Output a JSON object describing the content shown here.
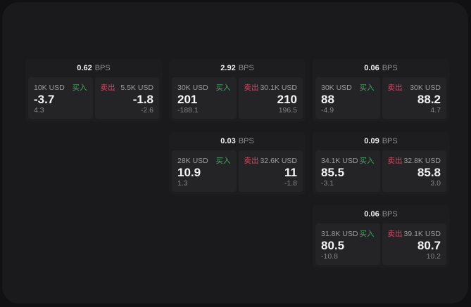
{
  "labels": {
    "bps_unit": "BPS",
    "buy": "买入",
    "sell": "卖出"
  },
  "colors": {
    "buy_green": "#46a363",
    "sell_red": "#c9506a",
    "card_bg": "#1d1d1f",
    "pane_bg": "#242427",
    "panel_bg": "#1a1a1c",
    "page_bg": "#111113",
    "primary_text": "#f4f4f4",
    "muted_text": "#9c9c9c"
  },
  "cards": [
    {
      "bps": "0.62",
      "buy": {
        "amount": "10K USD",
        "price": "-3.7",
        "delta": "4.3"
      },
      "sell": {
        "amount": "5.5K USD",
        "price": "-1.8",
        "delta": "-2.6"
      }
    },
    {
      "bps": "2.92",
      "buy": {
        "amount": "30K USD",
        "price": "201",
        "delta": "-188.1"
      },
      "sell": {
        "amount": "30.1K USD",
        "price": "210",
        "delta": "196.5"
      }
    },
    {
      "bps": "0.06",
      "buy": {
        "amount": "30K USD",
        "price": "88",
        "delta": "-4.9"
      },
      "sell": {
        "amount": "30K USD",
        "price": "88.2",
        "delta": "4.7"
      }
    },
    {
      "bps": "0.03",
      "buy": {
        "amount": "28K USD",
        "price": "10.9",
        "delta": "1.3"
      },
      "sell": {
        "amount": "32.6K USD",
        "price": "11",
        "delta": "-1.8"
      }
    },
    {
      "bps": "0.09",
      "buy": {
        "amount": "34.1K USD",
        "price": "85.5",
        "delta": "-3.1"
      },
      "sell": {
        "amount": "32.8K USD",
        "price": "85.8",
        "delta": "3.0"
      }
    },
    {
      "bps": "0.06",
      "buy": {
        "amount": "31.8K USD",
        "price": "80.5",
        "delta": "-10.8"
      },
      "sell": {
        "amount": "39.1K USD",
        "price": "80.7",
        "delta": "10.2"
      }
    }
  ]
}
